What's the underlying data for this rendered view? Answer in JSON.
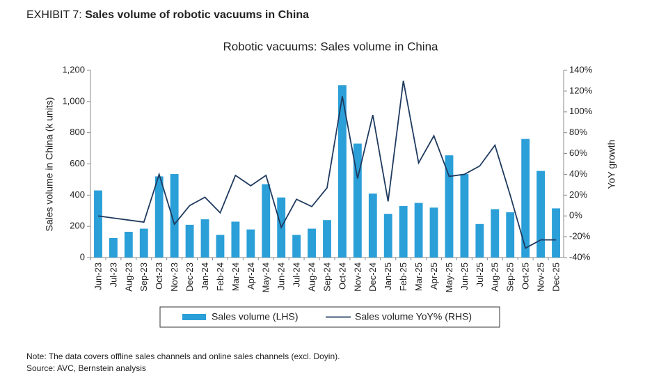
{
  "exhibit": {
    "label": "EXHIBIT 7:",
    "title": "Sales volume of robotic vacuums in China"
  },
  "chart_data": {
    "type": "bar",
    "title": "Robotic vacuums: Sales volume in China",
    "ylabel": "Sales volume in China (k units)",
    "y2label": "YoY growth",
    "categories": [
      "Jun-23",
      "Jul-23",
      "Aug-23",
      "Sep-23",
      "Oct-23",
      "Nov-23",
      "Dec-23",
      "Jan-24",
      "Feb-24",
      "Mar-24",
      "Apr-24",
      "May-24",
      "Jun-24",
      "Jul-24",
      "Aug-24",
      "Sep-24",
      "Oct-24",
      "Nov-24",
      "Dec-24",
      "Jan-25",
      "Feb-25",
      "Mar-25",
      "Apr-25",
      "May-25",
      "Jun-25",
      "Jul-25",
      "Aug-25",
      "Sep-25",
      "Oct-25",
      "Nov-25",
      "Dec-25"
    ],
    "series": [
      {
        "name": "Sales volume (LHS)",
        "type": "bar",
        "color": "#2a9fd8",
        "values": [
          430,
          125,
          165,
          185,
          520,
          535,
          210,
          245,
          145,
          230,
          180,
          470,
          385,
          145,
          185,
          240,
          1105,
          730,
          410,
          280,
          330,
          350,
          320,
          655,
          535,
          215,
          310,
          290,
          760,
          555,
          315
        ]
      },
      {
        "name": "Sales volume YoY% (RHS)",
        "type": "line",
        "axis": "y2",
        "color": "#1f3a5f",
        "values": [
          0,
          -2,
          -4,
          -6,
          40,
          -8,
          10,
          18,
          3,
          39,
          29,
          39,
          -11,
          16,
          9,
          27,
          115,
          36,
          97,
          14,
          130,
          51,
          77,
          38,
          40,
          48,
          68,
          20,
          -31,
          -23,
          -23
        ]
      }
    ],
    "ylim": [
      0,
      1200
    ],
    "yticks": [
      0,
      200,
      400,
      600,
      800,
      {
        "value": 1000,
        "label": "1,000"
      },
      {
        "value": 1200,
        "label": "1,200"
      }
    ],
    "y2lim": [
      -40,
      140
    ],
    "y2ticks": [
      {
        "value": -40,
        "label": "-40%"
      },
      {
        "value": -20,
        "label": "-20%"
      },
      {
        "value": 0,
        "label": "0%"
      },
      {
        "value": 20,
        "label": "20%"
      },
      {
        "value": 40,
        "label": "40%"
      },
      {
        "value": 60,
        "label": "60%"
      },
      {
        "value": 80,
        "label": "80%"
      },
      {
        "value": 100,
        "label": "100%"
      },
      {
        "value": 120,
        "label": "120%"
      },
      {
        "value": 140,
        "label": "140%"
      }
    ],
    "legend": "bottom"
  },
  "notes": [
    "Note: The data covers offline sales channels and online sales channels (excl. Doyin).",
    "Source: AVC, Bernstein analysis"
  ]
}
